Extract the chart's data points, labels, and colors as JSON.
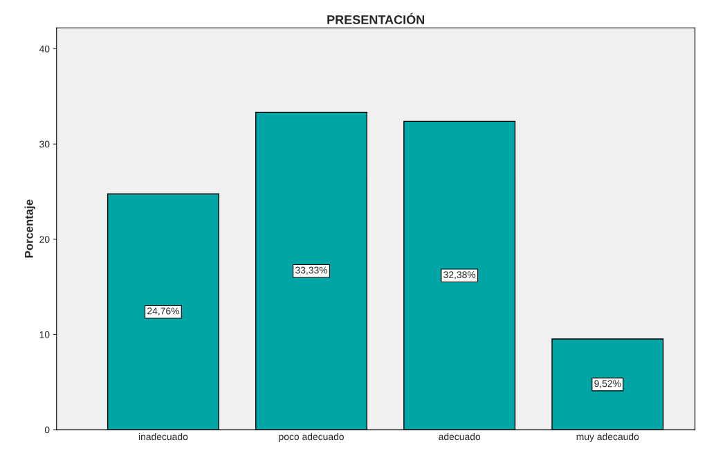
{
  "chart_data": {
    "type": "bar",
    "title": "PRESENTACIÓN",
    "ylabel": "Porcentaje",
    "categories": [
      "inadecuado",
      "poco adecuado",
      "adecuado",
      "muy adecaudo"
    ],
    "values": [
      24.76,
      33.33,
      32.38,
      9.52
    ],
    "value_labels": [
      "24,76%",
      "33,33%",
      "32,38%",
      "9,52%"
    ],
    "color": "#00a5a5",
    "ylim": [
      0,
      42.2
    ],
    "yticks": [
      0,
      10,
      20,
      30,
      40
    ],
    "grid": false
  }
}
